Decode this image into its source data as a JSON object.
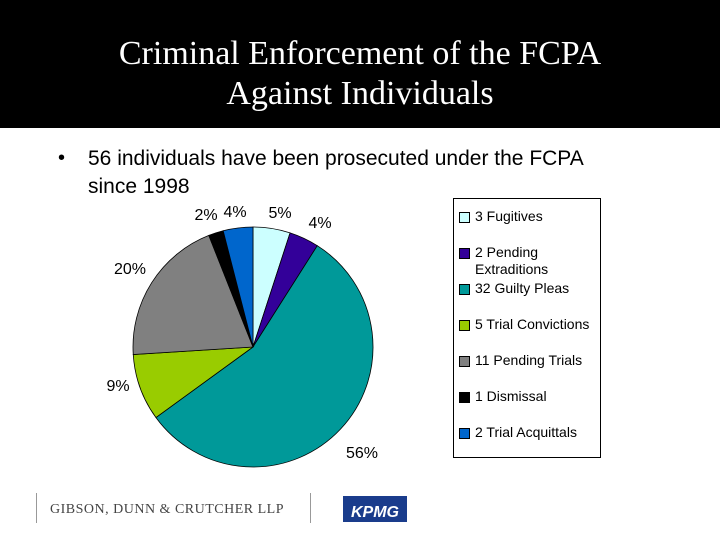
{
  "header": {
    "title_line1": "Criminal Enforcement of the FCPA",
    "title_line2": "Against Individuals"
  },
  "bullet": {
    "symbol": "•",
    "text": "56 individuals have been prosecuted under the FCPA since 1998"
  },
  "chart_data": {
    "type": "pie",
    "slices": [
      {
        "label": "3 Fugitives",
        "value": 5,
        "data_label": "5%",
        "color": "#CCFFFF"
      },
      {
        "label": "2 Pending Extraditions",
        "value": 4,
        "data_label": "4%",
        "color": "#330099"
      },
      {
        "label": "32 Guilty Pleas",
        "value": 56,
        "data_label": "56%",
        "color": "#009999"
      },
      {
        "label": "5 Trial Convictions",
        "value": 9,
        "data_label": "9%",
        "color": "#99CC00"
      },
      {
        "label": "11 Pending Trials",
        "value": 20,
        "data_label": "20%",
        "color": "#808080"
      },
      {
        "label": "1 Dismissal",
        "value": 2,
        "data_label": "2%",
        "color": "#000000"
      },
      {
        "label": "2 Trial Acquittals",
        "value": 4,
        "data_label": "4%",
        "color": "#0066CC"
      }
    ],
    "legend_placement": "right"
  },
  "footer": {
    "logo_left": "GIBSON, DUNN & CRUTCHER LLP",
    "logo_right": "KPMG"
  }
}
